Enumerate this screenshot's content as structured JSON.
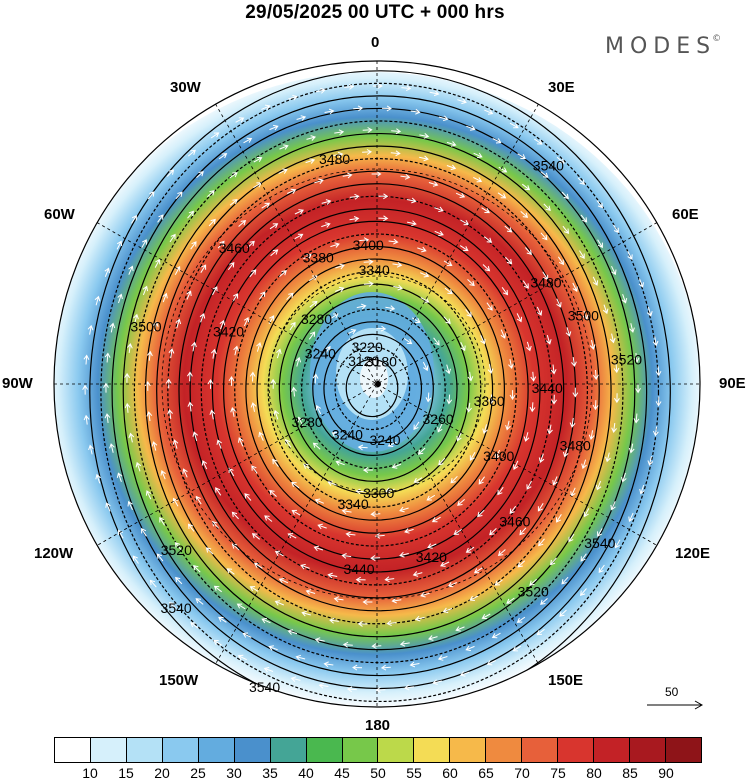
{
  "title": "29/05/2025  00 UTC  + 000 hrs",
  "brand": {
    "name": "MODES",
    "mark": "©"
  },
  "map": {
    "projection": "north-polar-stereographic",
    "longitude_labels": {
      "lon_0": "0",
      "lon_30e": "30E",
      "lon_60e": "60E",
      "lon_90e": "90E",
      "lon_120e": "120E",
      "lon_150e": "150E",
      "lon_180": "180",
      "lon_150w": "150W",
      "lon_120w": "120W",
      "lon_90w": "90W",
      "lon_60w": "60W",
      "lon_30w": "30W"
    },
    "contour_labels": [
      "3120",
      "3180",
      "3220",
      "3240",
      "3240",
      "3240",
      "3260",
      "3280",
      "3280",
      "3300",
      "3340",
      "3340",
      "3360",
      "3380",
      "3400",
      "3400",
      "3420",
      "3420",
      "3440",
      "3440",
      "3460",
      "3460",
      "3480",
      "3480",
      "3480",
      "3500",
      "3500",
      "3520",
      "3520",
      "3520",
      "3540",
      "3540",
      "3540",
      "3540"
    ],
    "vector_reference": {
      "value": "50"
    }
  },
  "colorbar": {
    "colors": [
      "#ffffff",
      "#d6f0fb",
      "#b4e1f6",
      "#8ac9ef",
      "#63acdf",
      "#4a90cc",
      "#44a596",
      "#4ab84f",
      "#77c84a",
      "#bcd94a",
      "#f4dc55",
      "#f6b94a",
      "#ef8a3f",
      "#e7603a",
      "#d8352e",
      "#c32226",
      "#a8191f",
      "#8e1418"
    ],
    "ticks": [
      "10",
      "15",
      "20",
      "25",
      "30",
      "35",
      "40",
      "45",
      "50",
      "55",
      "60",
      "65",
      "70",
      "75",
      "80",
      "85",
      "90"
    ]
  }
}
